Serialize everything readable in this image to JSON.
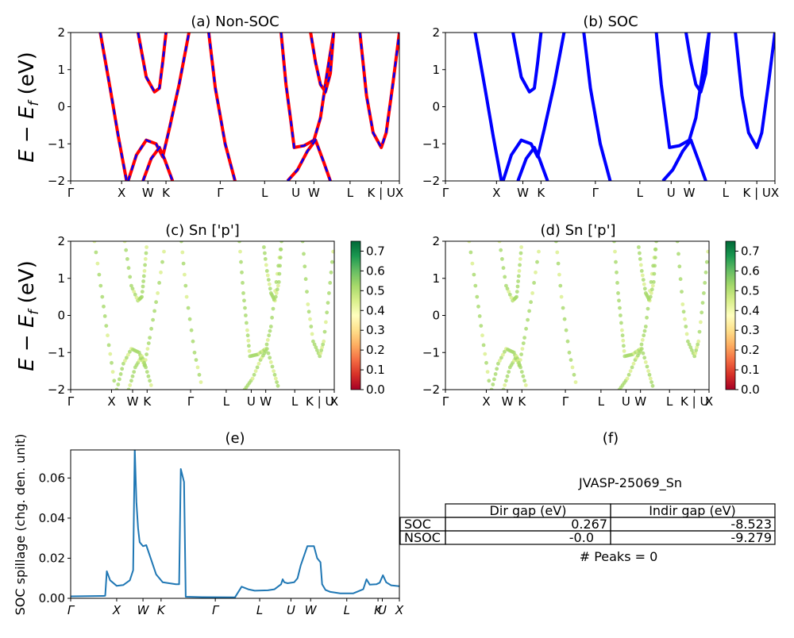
{
  "figure": {
    "panel_a": {
      "title": "(a) Non-SOC"
    },
    "panel_b": {
      "title": "(b) SOC"
    },
    "panel_c": {
      "title": "(c)  Sn ['p']"
    },
    "panel_d": {
      "title": "(d) Sn ['p']"
    },
    "panel_e": {
      "title": "(e)",
      "ylabel": "SOC spillage (chg. den. unit)"
    },
    "panel_f": {
      "title": "(f)",
      "material": "JVASP-25069_Sn",
      "table_headers": [
        "Dir gap (eV)",
        "Indir gap (eV)"
      ],
      "rows": [
        {
          "label": "SOC",
          "dir": "0.267",
          "indir": "-8.523"
        },
        {
          "label": "NSOC",
          "dir": "-0.0",
          "indir": "-9.279"
        }
      ],
      "peaks": "# Peaks = 0"
    },
    "band_ylabel": "E − E_f (eV)",
    "colors": {
      "non_soc_line": "#ff0000",
      "soc_line": "#0000ff",
      "dashed_overlay": "#0000ff",
      "spillage_line": "#1f77b4"
    }
  },
  "chart_data": [
    {
      "id": "a",
      "type": "line",
      "title": "(a) Non-SOC",
      "ylabel": "E − E_f (eV)",
      "ylim": [
        -2,
        2
      ],
      "yticks": [
        -2,
        -1,
        0,
        1,
        2
      ],
      "kpath_labels": [
        "Γ",
        "X",
        "W",
        "K",
        "Γ",
        "L",
        "U",
        "W",
        "L",
        "K | U",
        "X"
      ],
      "kpath_positions": [
        0,
        0.155,
        0.235,
        0.29,
        0.455,
        0.59,
        0.685,
        0.74,
        0.85,
        0.945,
        1.0
      ],
      "series": [
        {
          "values": [
            [
              0.09,
              2
            ],
            [
              0.12,
              0.5
            ],
            [
              0.145,
              -0.8
            ],
            [
              0.17,
              -2
            ]
          ]
        },
        {
          "values": [
            [
              0.205,
              2
            ],
            [
              0.23,
              0.8
            ],
            [
              0.255,
              0.4
            ],
            [
              0.27,
              0.5
            ],
            [
              0.28,
              1.2
            ],
            [
              0.29,
              2
            ]
          ]
        },
        {
          "values": [
            [
              0.175,
              -2
            ],
            [
              0.2,
              -1.3
            ],
            [
              0.23,
              -0.9
            ],
            [
              0.26,
              -1.0
            ],
            [
              0.28,
              -1.35
            ],
            [
              0.3,
              -0.6
            ],
            [
              0.33,
              0.6
            ],
            [
              0.36,
              2
            ]
          ]
        },
        {
          "values": [
            [
              0.22,
              -2
            ],
            [
              0.245,
              -1.4
            ],
            [
              0.27,
              -1.1
            ],
            [
              0.285,
              -1.4
            ],
            [
              0.31,
              -2
            ]
          ]
        },
        {
          "values": [
            [
              0.42,
              2
            ],
            [
              0.44,
              0.5
            ],
            [
              0.47,
              -1
            ],
            [
              0.5,
              -2
            ]
          ]
        },
        {
          "values": [
            [
              0.64,
              2
            ],
            [
              0.655,
              0.6
            ],
            [
              0.67,
              -0.4
            ],
            [
              0.68,
              -1.1
            ],
            [
              0.71,
              -1.05
            ],
            [
              0.74,
              -0.9
            ],
            [
              0.76,
              -0.3
            ],
            [
              0.78,
              0.9
            ],
            [
              0.8,
              2
            ]
          ]
        },
        {
          "values": [
            [
              0.66,
              -2
            ],
            [
              0.69,
              -1.7
            ],
            [
              0.72,
              -1.2
            ],
            [
              0.745,
              -0.9
            ],
            [
              0.77,
              -1.5
            ],
            [
              0.79,
              -2
            ]
          ]
        },
        {
          "values": [
            [
              0.8,
              2
            ],
            [
              0.79,
              0.9
            ],
            [
              0.775,
              0.4
            ],
            [
              0.76,
              0.6
            ],
            [
              0.745,
              1.2
            ],
            [
              0.73,
              2
            ]
          ]
        },
        {
          "values": [
            [
              0.88,
              2
            ],
            [
              0.9,
              0.3
            ],
            [
              0.92,
              -0.7
            ],
            [
              0.945,
              -1.1
            ],
            [
              0.96,
              -0.7
            ],
            [
              0.98,
              0.6
            ],
            [
              1.0,
              2
            ]
          ]
        }
      ]
    },
    {
      "id": "b",
      "type": "line",
      "title": "(b) SOC",
      "ylim": [
        -2,
        2
      ],
      "yticks": [
        -2,
        -1,
        0,
        1,
        2
      ],
      "kpath_labels": [
        "Γ",
        "X",
        "W",
        "K",
        "Γ",
        "L",
        "U",
        "W",
        "L",
        "K | U",
        "X"
      ],
      "kpath_positions": [
        0,
        0.155,
        0.235,
        0.29,
        0.455,
        0.59,
        0.685,
        0.74,
        0.85,
        0.945,
        1.0
      ]
    },
    {
      "id": "c",
      "type": "scatter",
      "title": "(c)  Sn ['p']",
      "ylabel": "E − E_f (eV)",
      "ylim": [
        -2,
        2
      ],
      "yticks": [
        -2,
        -1,
        0,
        1,
        2
      ],
      "colorbar": {
        "range": [
          0,
          0.75
        ],
        "ticks": [
          0.0,
          0.1,
          0.2,
          0.3,
          0.4,
          0.5,
          0.6,
          0.7
        ],
        "colormap": "RdYlGn"
      },
      "kpath_labels": [
        "Γ",
        "X",
        "W",
        "K",
        "Γ",
        "L",
        "U",
        "W",
        "L",
        "K | U",
        "X"
      ]
    },
    {
      "id": "d",
      "type": "scatter",
      "title": "(d) Sn ['p']",
      "ylim": [
        -2,
        2
      ],
      "yticks": [
        -2,
        -1,
        0,
        1,
        2
      ],
      "colorbar": {
        "range": [
          0,
          0.75
        ],
        "ticks": [
          0.0,
          0.1,
          0.2,
          0.3,
          0.4,
          0.5,
          0.6,
          0.7
        ],
        "colormap": "RdYlGn"
      },
      "kpath_labels": [
        "Γ",
        "X",
        "W",
        "K",
        "Γ",
        "L",
        "U",
        "W",
        "L",
        "K | U",
        "X"
      ]
    },
    {
      "id": "e",
      "type": "line",
      "title": "(e)",
      "ylabel": "SOC spillage (chg. den. unit)",
      "ylim": [
        0,
        0.074
      ],
      "yticks": [
        0.0,
        0.02,
        0.04,
        0.06
      ],
      "kpath_labels": [
        "Γ",
        "X",
        "W",
        "K",
        "Γ",
        "L",
        "U",
        "W",
        "L",
        "K",
        "U",
        "X"
      ],
      "kpath_positions": [
        0,
        0.14,
        0.22,
        0.275,
        0.44,
        0.575,
        0.67,
        0.73,
        0.84,
        0.935,
        0.948,
        1.0
      ],
      "x": [
        0,
        0.1,
        0.105,
        0.11,
        0.12,
        0.14,
        0.16,
        0.18,
        0.19,
        0.195,
        0.2,
        0.205,
        0.21,
        0.22,
        0.23,
        0.26,
        0.28,
        0.32,
        0.33,
        0.335,
        0.345,
        0.35,
        0.4,
        0.5,
        0.52,
        0.54,
        0.56,
        0.6,
        0.62,
        0.64,
        0.645,
        0.65,
        0.66,
        0.68,
        0.69,
        0.7,
        0.72,
        0.74,
        0.75,
        0.76,
        0.765,
        0.775,
        0.79,
        0.82,
        0.86,
        0.89,
        0.9,
        0.91,
        0.93,
        0.94,
        0.95,
        0.96,
        0.975,
        1.0
      ],
      "values": [
        0.001,
        0.0012,
        0.0013,
        0.0135,
        0.009,
        0.0062,
        0.0066,
        0.009,
        0.014,
        0.075,
        0.048,
        0.035,
        0.028,
        0.026,
        0.0265,
        0.012,
        0.008,
        0.007,
        0.007,
        0.0645,
        0.058,
        0.0008,
        0.0006,
        0.0005,
        0.0058,
        0.0045,
        0.0038,
        0.004,
        0.0045,
        0.007,
        0.0095,
        0.008,
        0.0075,
        0.008,
        0.01,
        0.0165,
        0.026,
        0.026,
        0.02,
        0.018,
        0.007,
        0.0042,
        0.0032,
        0.0025,
        0.0025,
        0.0045,
        0.0095,
        0.0068,
        0.007,
        0.0078,
        0.0115,
        0.008,
        0.0065,
        0.006
      ]
    }
  ]
}
